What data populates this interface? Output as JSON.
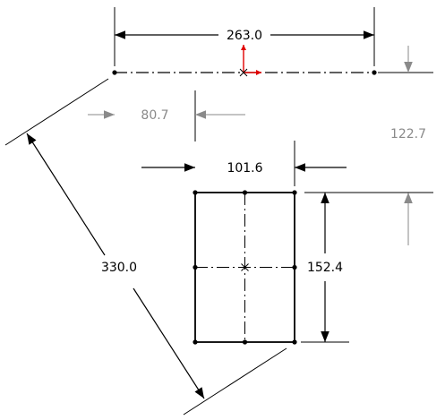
{
  "colors": {
    "sketch": "#000000",
    "driven_dimension": "#8a8a8a",
    "origin": "#e00000",
    "background": "#ffffff"
  },
  "dimensions": {
    "overall_width": "263.0",
    "offset_horizontal": "80.7",
    "offset_vertical": "122.7",
    "rect_width": "101.6",
    "rect_height": "152.4",
    "diagonal_distance": "330.0"
  }
}
